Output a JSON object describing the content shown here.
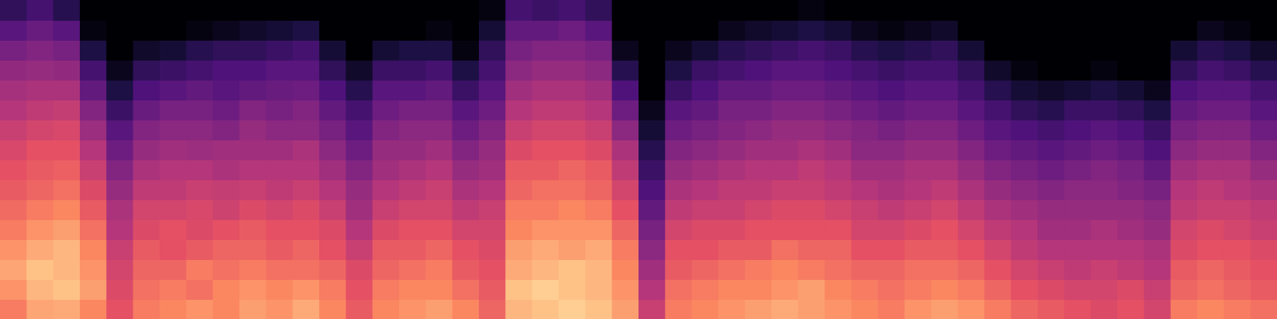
{
  "chart_data": {
    "type": "heatmap",
    "tick_labels": false,
    "zlim": [
      -80,
      0
    ],
    "cells": [
      [
        -22,
        -18,
        -15,
        -18,
        -22,
        -25,
        -28,
        -30,
        -33,
        -36,
        -40,
        -43,
        -47,
        -52,
        -58,
        -66
      ],
      [
        -15,
        -12,
        -10,
        -14,
        -18,
        -22,
        -26,
        -28,
        -30,
        -34,
        -38,
        -42,
        -46,
        -50,
        -55,
        -62
      ],
      [
        -14,
        -10,
        -12,
        -12,
        -16,
        -20,
        -24,
        -27,
        -30,
        -33,
        -37,
        -42,
        -47,
        -52,
        -58,
        -68
      ],
      [
        -20,
        -16,
        -18,
        -20,
        -24,
        -28,
        -32,
        -36,
        -40,
        -45,
        -50,
        -56,
        -62,
        -70,
        -78,
        -80
      ],
      [
        -30,
        -32,
        -34,
        -36,
        -40,
        -42,
        -46,
        -50,
        -54,
        -58,
        -64,
        -70,
        -76,
        -80,
        -80,
        -80
      ],
      [
        -22,
        -24,
        -26,
        -28,
        -32,
        -34,
        -38,
        -42,
        -46,
        -50,
        -55,
        -60,
        -66,
        -74,
        -80,
        -80
      ],
      [
        -20,
        -22,
        -26,
        -30,
        -30,
        -34,
        -38,
        -40,
        -44,
        -48,
        -52,
        -58,
        -64,
        -72,
        -80,
        -80
      ],
      [
        -18,
        -24,
        -22,
        -28,
        -32,
        -33,
        -36,
        -40,
        -45,
        -48,
        -52,
        -56,
        -62,
        -68,
        -78,
        -80
      ],
      [
        -20,
        -20,
        -24,
        -26,
        -30,
        -35,
        -37,
        -42,
        -44,
        -50,
        -54,
        -58,
        -60,
        -66,
        -76,
        -80
      ],
      [
        -16,
        -18,
        -22,
        -26,
        -28,
        -32,
        -36,
        -40,
        -44,
        -46,
        -50,
        -56,
        -60,
        -66,
        -74,
        -80
      ],
      [
        -18,
        -20,
        -24,
        -28,
        -30,
        -34,
        -38,
        -40,
        -44,
        -48,
        -52,
        -55,
        -58,
        -64,
        -72,
        -80
      ],
      [
        -14,
        -18,
        -24,
        -26,
        -30,
        -32,
        -36,
        -40,
        -42,
        -48,
        -50,
        -54,
        -58,
        -62,
        -70,
        -80
      ],
      [
        -20,
        -22,
        -26,
        -30,
        -32,
        -36,
        -40,
        -44,
        -48,
        -52,
        -56,
        -60,
        -66,
        -72,
        -80,
        -80
      ],
      [
        -28,
        -30,
        -32,
        -36,
        -40,
        -44,
        -46,
        -50,
        -54,
        -58,
        -62,
        -68,
        -74,
        -80,
        -80,
        -80
      ],
      [
        -20,
        -22,
        -26,
        -28,
        -32,
        -36,
        -40,
        -44,
        -46,
        -50,
        -54,
        -58,
        -64,
        -72,
        -80,
        -80
      ],
      [
        -18,
        -20,
        -24,
        -28,
        -30,
        -34,
        -38,
        -42,
        -46,
        -48,
        -52,
        -58,
        -64,
        -70,
        -80,
        -80
      ],
      [
        -16,
        -20,
        -22,
        -26,
        -30,
        -34,
        -36,
        -40,
        -44,
        -48,
        -52,
        -56,
        -62,
        -70,
        -78,
        -80
      ],
      [
        -20,
        -24,
        -28,
        -30,
        -34,
        -38,
        -42,
        -46,
        -50,
        -54,
        -58,
        -64,
        -70,
        -78,
        -80,
        -80
      ],
      [
        -26,
        -28,
        -30,
        -32,
        -34,
        -36,
        -40,
        -44,
        -46,
        -50,
        -54,
        -58,
        -62,
        -66,
        -72,
        -78
      ],
      [
        -12,
        -10,
        -14,
        -16,
        -20,
        -22,
        -26,
        -28,
        -32,
        -36,
        -40,
        -44,
        -48,
        -52,
        -56,
        -62
      ],
      [
        -10,
        -8,
        -12,
        -14,
        -18,
        -22,
        -24,
        -28,
        -30,
        -34,
        -38,
        -42,
        -46,
        -50,
        -56,
        -64
      ],
      [
        -8,
        -10,
        -10,
        -16,
        -18,
        -20,
        -24,
        -26,
        -30,
        -34,
        -38,
        -42,
        -46,
        -50,
        -54,
        -62
      ],
      [
        -10,
        -12,
        -12,
        -14,
        -18,
        -22,
        -26,
        -28,
        -32,
        -36,
        -40,
        -44,
        -48,
        -52,
        -58,
        -66
      ],
      [
        -16,
        -18,
        -20,
        -22,
        -26,
        -30,
        -34,
        -38,
        -42,
        -48,
        -54,
        -60,
        -68,
        -76,
        -80,
        -80
      ],
      [
        -36,
        -40,
        -44,
        -48,
        -52,
        -56,
        -60,
        -64,
        -68,
        -72,
        -76,
        -80,
        -80,
        -80,
        -80,
        -80
      ],
      [
        -22,
        -24,
        -28,
        -30,
        -34,
        -38,
        -42,
        -46,
        -50,
        -54,
        -58,
        -64,
        -70,
        -76,
        -80,
        -80
      ],
      [
        -20,
        -22,
        -26,
        -30,
        -32,
        -36,
        -40,
        -44,
        -48,
        -52,
        -56,
        -60,
        -64,
        -72,
        -80,
        -80
      ],
      [
        -18,
        -20,
        -24,
        -28,
        -32,
        -36,
        -38,
        -42,
        -46,
        -50,
        -52,
        -56,
        -62,
        -68,
        -76,
        -80
      ],
      [
        -16,
        -20,
        -22,
        -28,
        -30,
        -34,
        -38,
        -40,
        -44,
        -48,
        -52,
        -56,
        -60,
        -66,
        -74,
        -80
      ],
      [
        -14,
        -18,
        -20,
        -24,
        -30,
        -32,
        -36,
        -40,
        -44,
        -46,
        -50,
        -54,
        -58,
        -64,
        -72,
        -80
      ],
      [
        -16,
        -16,
        -22,
        -26,
        -30,
        -32,
        -36,
        -38,
        -42,
        -46,
        -50,
        -54,
        -58,
        -62,
        -70,
        -78
      ],
      [
        -18,
        -20,
        -24,
        -26,
        -30,
        -34,
        -38,
        -40,
        -44,
        -48,
        -52,
        -56,
        -60,
        -64,
        -72,
        -80
      ],
      [
        -20,
        -22,
        -26,
        -30,
        -34,
        -36,
        -40,
        -44,
        -48,
        -50,
        -54,
        -58,
        -62,
        -68,
        -76,
        -80
      ],
      [
        -22,
        -24,
        -26,
        -30,
        -34,
        -38,
        -42,
        -44,
        -48,
        -52,
        -56,
        -60,
        -64,
        -70,
        -78,
        -80
      ],
      [
        -18,
        -22,
        -24,
        -28,
        -32,
        -36,
        -40,
        -42,
        -46,
        -50,
        -54,
        -58,
        -62,
        -68,
        -76,
        -80
      ],
      [
        -16,
        -20,
        -24,
        -28,
        -30,
        -34,
        -38,
        -42,
        -46,
        -50,
        -54,
        -58,
        -62,
        -66,
        -74,
        -80
      ],
      [
        -18,
        -22,
        -26,
        -30,
        -34,
        -38,
        -42,
        -46,
        -50,
        -54,
        -58,
        -62,
        -66,
        -72,
        -80,
        -80
      ],
      [
        -22,
        -26,
        -30,
        -34,
        -38,
        -42,
        -46,
        -50,
        -54,
        -58,
        -62,
        -68,
        -74,
        -80,
        -80,
        -80
      ],
      [
        -26,
        -30,
        -34,
        -38,
        -40,
        -44,
        -48,
        -52,
        -56,
        -60,
        -66,
        -72,
        -78,
        -80,
        -80,
        -80
      ],
      [
        -28,
        -32,
        -36,
        -40,
        -44,
        -46,
        -50,
        -54,
        -58,
        -62,
        -68,
        -74,
        -80,
        -80,
        -80,
        -80
      ],
      [
        -30,
        -34,
        -38,
        -40,
        -44,
        -46,
        -48,
        -52,
        -56,
        -60,
        -64,
        -72,
        -80,
        -80,
        -80,
        -80
      ],
      [
        -32,
        -34,
        -36,
        -40,
        -42,
        -46,
        -48,
        -50,
        -54,
        -58,
        -64,
        -70,
        -78,
        -80,
        -80,
        -80
      ],
      [
        -30,
        -32,
        -38,
        -40,
        -44,
        -46,
        -50,
        -52,
        -56,
        -60,
        -66,
        -72,
        -80,
        -80,
        -80,
        -80
      ],
      [
        -34,
        -36,
        -40,
        -42,
        -46,
        -48,
        -52,
        -56,
        -60,
        -64,
        -70,
        -76,
        -80,
        -80,
        -80,
        -80
      ],
      [
        -22,
        -26,
        -28,
        -32,
        -34,
        -38,
        -40,
        -44,
        -48,
        -52,
        -56,
        -60,
        -66,
        -72,
        -80,
        -80
      ],
      [
        -20,
        -24,
        -26,
        -30,
        -32,
        -36,
        -38,
        -42,
        -46,
        -50,
        -54,
        -58,
        -62,
        -68,
        -76,
        -80
      ],
      [
        -22,
        -26,
        -28,
        -30,
        -34,
        -36,
        -40,
        -42,
        -46,
        -50,
        -54,
        -58,
        -64,
        -70,
        -78,
        -80
      ],
      [
        -24,
        -28,
        -30,
        -32,
        -36,
        -38,
        -42,
        -46,
        -50,
        -54,
        -58,
        -62,
        -68,
        -74,
        -80,
        -80
      ]
    ]
  }
}
